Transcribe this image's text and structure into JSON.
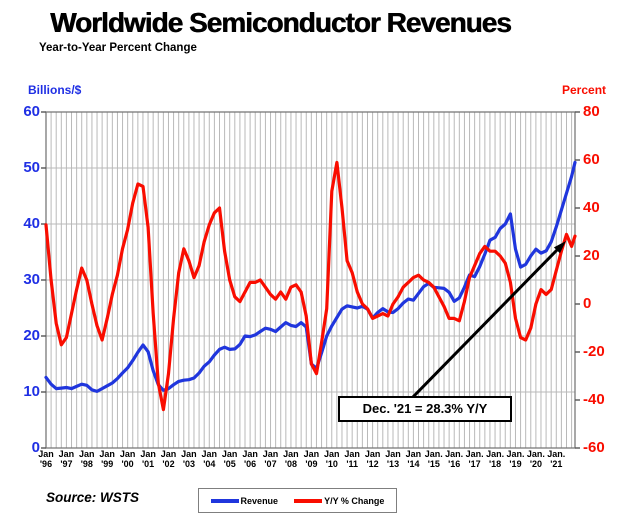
{
  "header": {
    "title": "Worldwide Semiconductor Revenues",
    "subtitle": "Year-to-Year Percent Change"
  },
  "footer": {
    "source": "Source: WSTS"
  },
  "chart_data": {
    "type": "line",
    "title": "Worldwide Semiconductor Revenues",
    "subtitle": "Year-to-Year Percent Change",
    "x_unit": "month index, 0 = Jan 1996 ... 311 = Dec 2021",
    "grid": {
      "vertical_every_months": 3,
      "horizontal_gridlines": true
    },
    "left_axis": {
      "label": "Billions/$",
      "min": 0,
      "max": 60,
      "ticks": [
        60,
        50,
        40,
        30,
        20,
        10,
        0
      ],
      "color": "#1f2fe4"
    },
    "right_axis": {
      "label": "Percent",
      "min": -60,
      "max": 80,
      "ticks": [
        80,
        60,
        40,
        20,
        0,
        -20,
        -40,
        -60
      ],
      "color": "#f90d00"
    },
    "x_tick_labels": [
      {
        "month": "Jan",
        "year": "'96"
      },
      {
        "month": "Jan",
        "year": "'97"
      },
      {
        "month": "Jan",
        "year": "'98"
      },
      {
        "month": "Jan",
        "year": "'99"
      },
      {
        "month": "Jan",
        "year": "'00"
      },
      {
        "month": "Jan",
        "year": "'01"
      },
      {
        "month": "Jan",
        "year": "'02"
      },
      {
        "month": "Jan",
        "year": "'03"
      },
      {
        "month": "Jan",
        "year": "'04"
      },
      {
        "month": "Jan",
        "year": "'05"
      },
      {
        "month": "Jan",
        "year": "'06"
      },
      {
        "month": "Jan",
        "year": "'07"
      },
      {
        "month": "Jan",
        "year": "'08"
      },
      {
        "month": "Jan",
        "year": "'09"
      },
      {
        "month": "Jan",
        "year": "'10"
      },
      {
        "month": "Jan",
        "year": "'11"
      },
      {
        "month": "Jan",
        "year": "'12"
      },
      {
        "month": "Jan",
        "year": "'13"
      },
      {
        "month": "Jan",
        "year": "'14"
      },
      {
        "month": "Jan.",
        "year": "'15"
      },
      {
        "month": "Jan.",
        "year": "'16"
      },
      {
        "month": "Jan.",
        "year": "'17"
      },
      {
        "month": "Jan.",
        "year": "'18"
      },
      {
        "month": "Jan.",
        "year": "'19"
      },
      {
        "month": "Jan.",
        "year": "'20"
      },
      {
        "month": "Jan.",
        "year": "'21"
      }
    ],
    "annotation": {
      "label": "Dec. '21 = 28.3% Y/Y",
      "points_to": "final point of Y/Y % Change line (Dec 2021)"
    },
    "series": [
      {
        "name": "Revenue",
        "axis": "left",
        "color": "#2036dd",
        "unit": "billions of $ per month",
        "points": [
          [
            0,
            12.6
          ],
          [
            3,
            11.4
          ],
          [
            6,
            10.6
          ],
          [
            9,
            10.7
          ],
          [
            12,
            10.8
          ],
          [
            15,
            10.6
          ],
          [
            18,
            11.0
          ],
          [
            21,
            11.4
          ],
          [
            24,
            11.2
          ],
          [
            27,
            10.4
          ],
          [
            30,
            10.1
          ],
          [
            33,
            10.6
          ],
          [
            36,
            11.1
          ],
          [
            39,
            11.6
          ],
          [
            42,
            12.4
          ],
          [
            45,
            13.4
          ],
          [
            48,
            14.3
          ],
          [
            51,
            15.6
          ],
          [
            54,
            17.1
          ],
          [
            57,
            18.4
          ],
          [
            60,
            17.2
          ],
          [
            63,
            13.8
          ],
          [
            66,
            11.3
          ],
          [
            69,
            10.3
          ],
          [
            72,
            10.6
          ],
          [
            75,
            11.3
          ],
          [
            78,
            11.9
          ],
          [
            81,
            12.1
          ],
          [
            84,
            12.2
          ],
          [
            87,
            12.5
          ],
          [
            90,
            13.4
          ],
          [
            93,
            14.6
          ],
          [
            96,
            15.4
          ],
          [
            99,
            16.6
          ],
          [
            102,
            17.6
          ],
          [
            105,
            18.0
          ],
          [
            108,
            17.6
          ],
          [
            111,
            17.7
          ],
          [
            114,
            18.5
          ],
          [
            117,
            20.0
          ],
          [
            120,
            19.9
          ],
          [
            123,
            20.2
          ],
          [
            126,
            20.8
          ],
          [
            129,
            21.4
          ],
          [
            132,
            21.2
          ],
          [
            135,
            20.8
          ],
          [
            138,
            21.6
          ],
          [
            141,
            22.4
          ],
          [
            144,
            21.9
          ],
          [
            147,
            21.7
          ],
          [
            150,
            22.4
          ],
          [
            153,
            21.6
          ],
          [
            156,
            15.0
          ],
          [
            159,
            14.2
          ],
          [
            162,
            17.0
          ],
          [
            165,
            20.0
          ],
          [
            168,
            21.8
          ],
          [
            171,
            23.3
          ],
          [
            174,
            24.8
          ],
          [
            177,
            25.4
          ],
          [
            180,
            25.2
          ],
          [
            183,
            25.0
          ],
          [
            186,
            25.3
          ],
          [
            189,
            24.8
          ],
          [
            192,
            23.2
          ],
          [
            195,
            24.2
          ],
          [
            198,
            24.9
          ],
          [
            201,
            24.3
          ],
          [
            204,
            24.2
          ],
          [
            207,
            24.9
          ],
          [
            210,
            25.9
          ],
          [
            213,
            26.6
          ],
          [
            216,
            26.4
          ],
          [
            219,
            27.6
          ],
          [
            222,
            28.8
          ],
          [
            225,
            29.4
          ],
          [
            228,
            28.7
          ],
          [
            231,
            28.6
          ],
          [
            234,
            28.5
          ],
          [
            237,
            27.8
          ],
          [
            240,
            26.2
          ],
          [
            243,
            26.8
          ],
          [
            246,
            28.7
          ],
          [
            249,
            30.9
          ],
          [
            252,
            30.6
          ],
          [
            255,
            32.4
          ],
          [
            258,
            34.6
          ],
          [
            261,
            37.1
          ],
          [
            264,
            37.6
          ],
          [
            267,
            39.2
          ],
          [
            270,
            40.0
          ],
          [
            273,
            41.8
          ],
          [
            276,
            35.5
          ],
          [
            279,
            32.3
          ],
          [
            282,
            32.8
          ],
          [
            285,
            34.3
          ],
          [
            288,
            35.5
          ],
          [
            291,
            34.8
          ],
          [
            294,
            35.2
          ],
          [
            297,
            36.8
          ],
          [
            300,
            39.5
          ],
          [
            303,
            42.5
          ],
          [
            306,
            45.5
          ],
          [
            309,
            48.5
          ],
          [
            311,
            51.0
          ]
        ]
      },
      {
        "name": "Y/Y % Change",
        "axis": "right",
        "color": "#f90d00",
        "unit": "percent",
        "points": [
          [
            0,
            33
          ],
          [
            3,
            10
          ],
          [
            6,
            -8
          ],
          [
            9,
            -17
          ],
          [
            12,
            -14
          ],
          [
            15,
            -4
          ],
          [
            18,
            6
          ],
          [
            21,
            15
          ],
          [
            24,
            10
          ],
          [
            27,
            0
          ],
          [
            30,
            -9
          ],
          [
            33,
            -15
          ],
          [
            36,
            -6
          ],
          [
            39,
            4
          ],
          [
            42,
            12
          ],
          [
            45,
            23
          ],
          [
            48,
            31
          ],
          [
            51,
            42
          ],
          [
            54,
            50
          ],
          [
            57,
            49
          ],
          [
            60,
            32
          ],
          [
            63,
            -4
          ],
          [
            66,
            -33
          ],
          [
            69,
            -44
          ],
          [
            72,
            -29
          ],
          [
            75,
            -6
          ],
          [
            78,
            13
          ],
          [
            81,
            23
          ],
          [
            84,
            18
          ],
          [
            87,
            11
          ],
          [
            90,
            16
          ],
          [
            93,
            26
          ],
          [
            96,
            33
          ],
          [
            99,
            38
          ],
          [
            102,
            40
          ],
          [
            105,
            22
          ],
          [
            108,
            10
          ],
          [
            111,
            3
          ],
          [
            114,
            1
          ],
          [
            117,
            5
          ],
          [
            120,
            9
          ],
          [
            123,
            9
          ],
          [
            126,
            10
          ],
          [
            129,
            7
          ],
          [
            132,
            4
          ],
          [
            135,
            2
          ],
          [
            138,
            5
          ],
          [
            141,
            2
          ],
          [
            144,
            7
          ],
          [
            147,
            8
          ],
          [
            150,
            5
          ],
          [
            153,
            -5
          ],
          [
            156,
            -25
          ],
          [
            159,
            -29
          ],
          [
            162,
            -16
          ],
          [
            165,
            -2
          ],
          [
            168,
            47
          ],
          [
            171,
            59
          ],
          [
            174,
            40
          ],
          [
            177,
            18
          ],
          [
            180,
            13
          ],
          [
            183,
            5
          ],
          [
            186,
            0
          ],
          [
            189,
            -2
          ],
          [
            192,
            -6
          ],
          [
            195,
            -5
          ],
          [
            198,
            -4
          ],
          [
            201,
            -5
          ],
          [
            204,
            0
          ],
          [
            207,
            3
          ],
          [
            210,
            7
          ],
          [
            213,
            9
          ],
          [
            216,
            11
          ],
          [
            219,
            12
          ],
          [
            222,
            10
          ],
          [
            225,
            9
          ],
          [
            228,
            7
          ],
          [
            231,
            3
          ],
          [
            234,
            -1
          ],
          [
            237,
            -6
          ],
          [
            240,
            -6
          ],
          [
            243,
            -7
          ],
          [
            246,
            1
          ],
          [
            249,
            11
          ],
          [
            252,
            16
          ],
          [
            255,
            21
          ],
          [
            258,
            24
          ],
          [
            261,
            22
          ],
          [
            264,
            22
          ],
          [
            267,
            20
          ],
          [
            270,
            17
          ],
          [
            273,
            9
          ],
          [
            276,
            -6
          ],
          [
            279,
            -14
          ],
          [
            282,
            -15
          ],
          [
            285,
            -10
          ],
          [
            288,
            0
          ],
          [
            291,
            6
          ],
          [
            294,
            4
          ],
          [
            297,
            6
          ],
          [
            300,
            14
          ],
          [
            303,
            22
          ],
          [
            306,
            29
          ],
          [
            309,
            24
          ],
          [
            311,
            28.3
          ]
        ]
      }
    ]
  }
}
